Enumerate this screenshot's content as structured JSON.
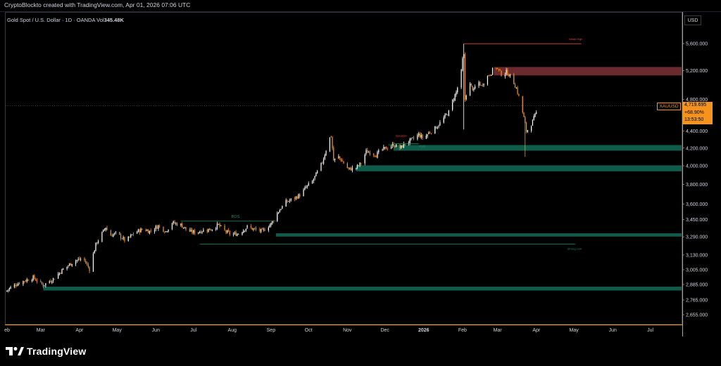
{
  "caption": "CryptoBlockto created with TradingView.com, Apr 01, 2026 07:06 UTC",
  "symbol": {
    "description": "Gold Spot / U.S. Dollar · 1D · OANDA",
    "volume_label": "Vol",
    "volume_value": "345.48K"
  },
  "currency": "USD",
  "price_tag": {
    "symbol": "XAUUSD",
    "price": "4,719.695",
    "change": "+68.90%",
    "countdown": "13:53:50"
  },
  "brand": "TradingView",
  "colors": {
    "up": "#ffffff",
    "down": "#f7931a",
    "zone_green": "#0f5c4a",
    "zone_red": "#6b2a2e",
    "line_green": "#1b8f6e",
    "line_red": "#e0463f",
    "axis": "#f7931a"
  },
  "chart_data": {
    "type": "candlestick",
    "title": "Gold Spot / U.S. Dollar · 1D · OANDA",
    "y_scale": "log",
    "y_ticks": [
      {
        "value": 5600,
        "label": "5,600.000"
      },
      {
        "value": 5200,
        "label": "5,200.000"
      },
      {
        "value": 4800,
        "label": "4,800.000"
      },
      {
        "value": 4400,
        "label": "4,400.000"
      },
      {
        "value": 4200,
        "label": "4,200.000"
      },
      {
        "value": 4000,
        "label": "4,000.000"
      },
      {
        "value": 3800,
        "label": "3,800.000"
      },
      {
        "value": 3600,
        "label": "3,600.000"
      },
      {
        "value": 3450,
        "label": "3,450.000"
      },
      {
        "value": 3290,
        "label": "3,290.000"
      },
      {
        "value": 3130,
        "label": "3,130.000"
      },
      {
        "value": 3005,
        "label": "3,005.000"
      },
      {
        "value": 2885,
        "label": "2,885.000"
      },
      {
        "value": 2765,
        "label": "2,765.000"
      },
      {
        "value": 2655,
        "label": "2,655.000"
      }
    ],
    "x_ticks": [
      {
        "day": 0,
        "label": "eb"
      },
      {
        "day": 28,
        "label": "Mar"
      },
      {
        "day": 59,
        "label": "Apr"
      },
      {
        "day": 89,
        "label": "May"
      },
      {
        "day": 120,
        "label": "Jun"
      },
      {
        "day": 150,
        "label": "Jul"
      },
      {
        "day": 181,
        "label": "Aug"
      },
      {
        "day": 212,
        "label": "Sep"
      },
      {
        "day": 242,
        "label": "Oct"
      },
      {
        "day": 273,
        "label": "Nov"
      },
      {
        "day": 303,
        "label": "Dec"
      },
      {
        "day": 334,
        "label": "2026"
      },
      {
        "day": 365,
        "label": "Feb"
      },
      {
        "day": 393,
        "label": "Mar"
      },
      {
        "day": 424,
        "label": "Apr"
      },
      {
        "day": 454,
        "label": "May"
      },
      {
        "day": 485,
        "label": "Jun"
      },
      {
        "day": 515,
        "label": "Jul"
      }
    ],
    "x_range": [
      0,
      540
    ],
    "anchors": [
      [
        0,
        2830
      ],
      [
        5,
        2870
      ],
      [
        12,
        2905
      ],
      [
        22,
        2940
      ],
      [
        30,
        2880
      ],
      [
        38,
        2930
      ],
      [
        45,
        3000
      ],
      [
        55,
        3080
      ],
      [
        62,
        3100
      ],
      [
        67,
        3010
      ],
      [
        72,
        3220
      ],
      [
        80,
        3380
      ],
      [
        83,
        3300
      ],
      [
        88,
        3320
      ],
      [
        92,
        3290
      ],
      [
        96,
        3250
      ],
      [
        103,
        3330
      ],
      [
        110,
        3360
      ],
      [
        115,
        3340
      ],
      [
        122,
        3390
      ],
      [
        128,
        3340
      ],
      [
        133,
        3420
      ],
      [
        140,
        3400
      ],
      [
        146,
        3340
      ],
      [
        152,
        3330
      ],
      [
        158,
        3350
      ],
      [
        164,
        3360
      ],
      [
        170,
        3400
      ],
      [
        174,
        3350
      ],
      [
        180,
        3310
      ],
      [
        186,
        3320
      ],
      [
        193,
        3380
      ],
      [
        198,
        3360
      ],
      [
        205,
        3340
      ],
      [
        212,
        3410
      ],
      [
        218,
        3530
      ],
      [
        224,
        3620
      ],
      [
        231,
        3660
      ],
      [
        236,
        3700
      ],
      [
        240,
        3770
      ],
      [
        245,
        3830
      ],
      [
        249,
        3930
      ],
      [
        253,
        4040
      ],
      [
        256,
        4180
      ],
      [
        258,
        4300
      ],
      [
        260,
        4340
      ],
      [
        262,
        4060
      ],
      [
        266,
        4100
      ],
      [
        270,
        4030
      ],
      [
        274,
        3960
      ],
      [
        280,
        3980
      ],
      [
        284,
        4030
      ],
      [
        288,
        4160
      ],
      [
        292,
        4150
      ],
      [
        296,
        4120
      ],
      [
        300,
        4180
      ],
      [
        306,
        4210
      ],
      [
        310,
        4240
      ],
      [
        315,
        4200
      ],
      [
        320,
        4260
      ],
      [
        326,
        4310
      ],
      [
        330,
        4360
      ],
      [
        334,
        4310
      ],
      [
        338,
        4380
      ],
      [
        342,
        4420
      ],
      [
        346,
        4480
      ],
      [
        350,
        4560
      ],
      [
        354,
        4640
      ],
      [
        357,
        4780
      ],
      [
        360,
        4900
      ],
      [
        362,
        5020
      ],
      [
        364,
        5180
      ],
      [
        365,
        5360
      ],
      [
        366,
        5420
      ],
      [
        367,
        4800
      ],
      [
        368,
        4880
      ],
      [
        371,
        5000
      ],
      [
        374,
        4920
      ],
      [
        377,
        5060
      ],
      [
        380,
        4980
      ],
      [
        384,
        5100
      ],
      [
        388,
        5170
      ],
      [
        391,
        5270
      ],
      [
        394,
        5200
      ],
      [
        397,
        5120
      ],
      [
        400,
        5180
      ],
      [
        404,
        5100
      ],
      [
        408,
        4950
      ],
      [
        411,
        4780
      ],
      [
        414,
        4560
      ],
      [
        416,
        4400
      ],
      [
        419,
        4450
      ],
      [
        422,
        4560
      ],
      [
        425,
        4660
      ],
      [
        426,
        4720
      ]
    ],
    "spikes": [
      {
        "day": 366,
        "high": 5598,
        "low": 4420
      },
      {
        "day": 415,
        "low": 4100
      }
    ],
    "last_price": 4719.695,
    "zones": [
      {
        "name": "Supply zone",
        "x_start": 390,
        "x_end": 540,
        "top": 5250,
        "bottom": 5130,
        "color": "red"
      },
      {
        "name": "Demand zone",
        "x_start": 310,
        "x_end": 540,
        "top": 4235,
        "bottom": 4170,
        "color": "green"
      },
      {
        "name": "Demand zone",
        "x_start": 280,
        "x_end": 540,
        "top": 4005,
        "bottom": 3940,
        "color": "green"
      },
      {
        "name": "Demand zone",
        "x_start": 216,
        "x_end": 540,
        "top": 3322,
        "bottom": 3292,
        "color": "green"
      },
      {
        "name": "Demand zone",
        "x_start": 30,
        "x_end": 540,
        "top": 2868,
        "bottom": 2838,
        "color": "green"
      }
    ],
    "lines": [
      {
        "label": "BOS",
        "x_start": 140,
        "x_end": 216,
        "value": 3435,
        "color": "green"
      },
      {
        "label": "Strong Low",
        "x_start": 155,
        "x_end": 455,
        "value": 3225,
        "color": "green"
      },
      {
        "label": "Weak High",
        "x_start": 366,
        "x_end": 460,
        "value": 5598,
        "color": "red"
      },
      {
        "label": "IDM",
        "x_start": 310,
        "x_end": 330,
        "value": 4250,
        "color": "green"
      }
    ],
    "annotations": [
      {
        "text": "CHoCH",
        "day": 316,
        "value": 4330,
        "color": "red"
      },
      {
        "text": "FVG",
        "day": 333,
        "value": 4205,
        "color": "green"
      }
    ]
  }
}
